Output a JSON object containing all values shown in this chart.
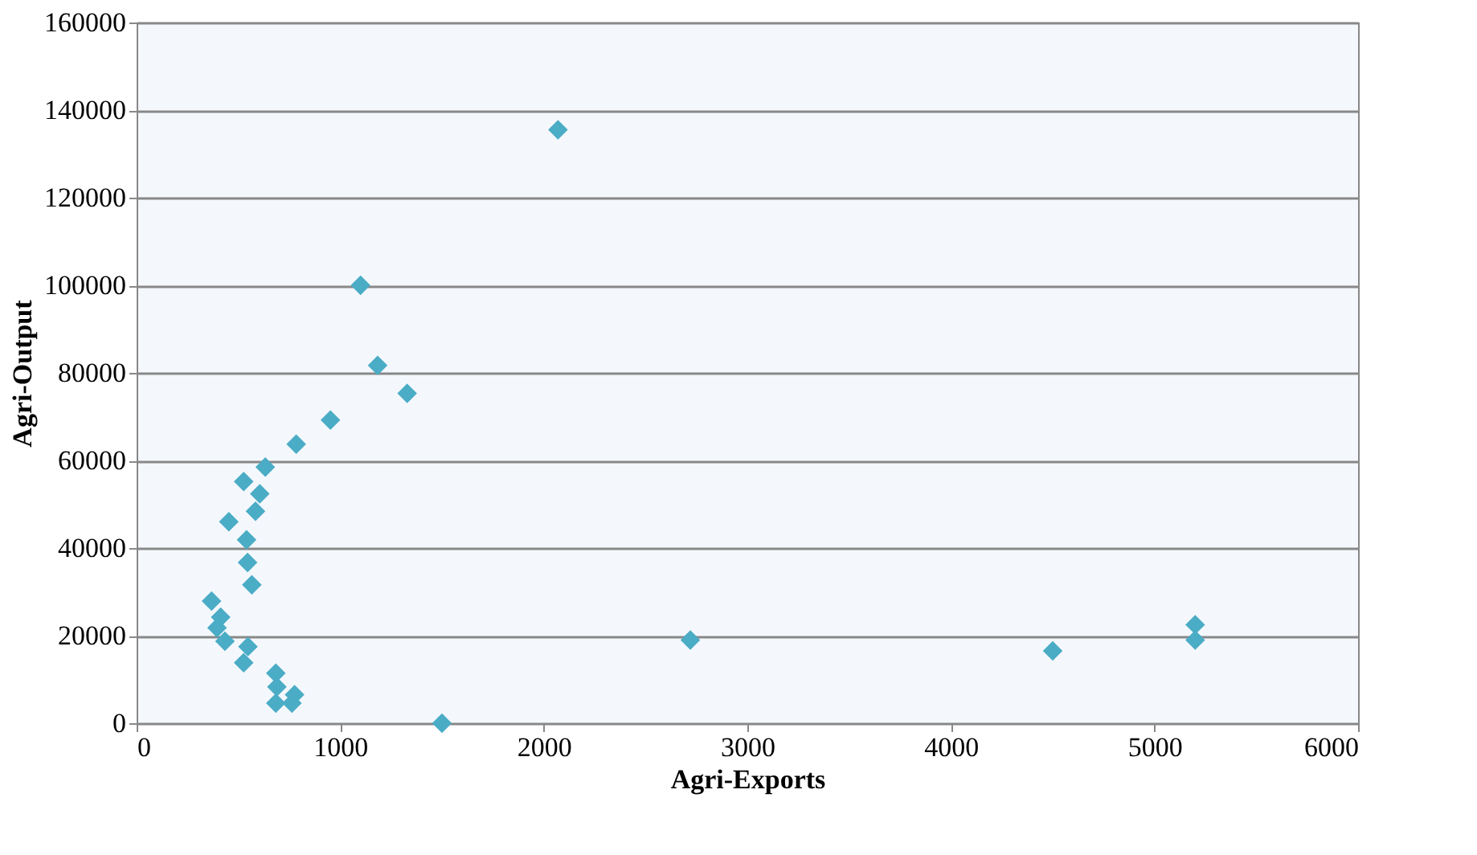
{
  "chart_data": {
    "type": "scatter",
    "xlabel": "Agri-Exports",
    "ylabel": "Agri-Output",
    "x": [
      2070,
      1100,
      1184,
      1329,
      952,
      784,
      632,
      526,
      605,
      584,
      453,
      540,
      545,
      566,
      368,
      413,
      395,
      434,
      547,
      526,
      684,
      689,
      776,
      684,
      763,
      1500,
      2720,
      4500,
      5200,
      5200
    ],
    "series": [
      {
        "color": "#4bacc6",
        "values": [
          135500,
          100000,
          81700,
          75300,
          69200,
          63700,
          58500,
          55200,
          52400,
          48400,
          46000,
          41900,
          36700,
          31600,
          27900,
          24200,
          21800,
          18700,
          17500,
          13800,
          11400,
          8300,
          6500,
          4600,
          4600,
          0,
          19000,
          16500,
          22500,
          19000
        ]
      }
    ],
    "xlim": [
      0,
      6000
    ],
    "xticks": [
      0,
      1000,
      2000,
      3000,
      4000,
      5000,
      6000
    ],
    "ylim": [
      0,
      160000
    ],
    "yticks": [
      0,
      20000,
      40000,
      60000,
      80000,
      100000,
      120000,
      140000,
      160000
    ],
    "grid": "y",
    "marker": "diamond",
    "legend": false
  }
}
